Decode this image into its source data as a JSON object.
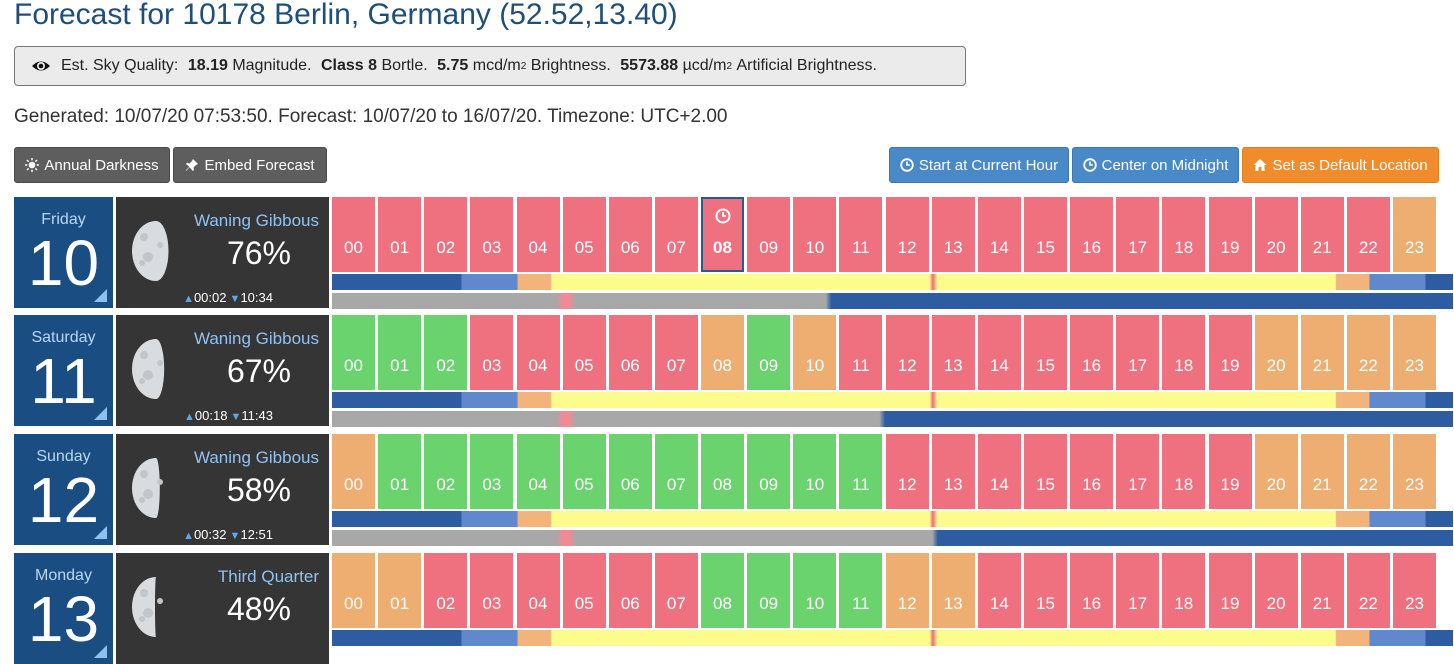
{
  "title": "Forecast for 10178 Berlin, Germany (52.52,13.40)",
  "sky_quality": {
    "icon": "eye-icon",
    "label": "Est. Sky Quality:",
    "magnitude_value": "18.19",
    "magnitude_label": "Magnitude.",
    "class_value": "Class 8",
    "class_label": "Bortle.",
    "brightness_value": "5.75",
    "brightness_unit": "mcd/m",
    "brightness_label": "Brightness.",
    "artificial_value": "5573.88",
    "artificial_unit": "µcd/m",
    "artificial_label": "Artificial Brightness.",
    "superscript": "2"
  },
  "generated_text": "Generated: 10/07/20 07:53:50. Forecast: 10/07/20 to 16/07/20. Timezone: UTC+2.00",
  "buttons": {
    "annual_darkness": "Annual Darkness",
    "embed_forecast": "Embed Forecast",
    "start_current_hour": "Start at Current Hour",
    "center_midnight": "Center on Midnight",
    "set_default": "Set as Default Location"
  },
  "colors": {
    "red": "#ef707f",
    "green": "#6ad36e",
    "orange": "#eeae72",
    "night": "#2d5da0",
    "twilight": "#5f88cd",
    "dusk": "#f2b47a",
    "day": "#fcfc8c",
    "moon": "#a8a8a8",
    "header_blue": "#1a4e82"
  },
  "days": [
    {
      "day_name": "Friday",
      "day_num": "10",
      "moon_phase": "Waning Gibbous",
      "illumination": "76%",
      "moonrise": "00:02",
      "moonset": "10:34",
      "current_hour": 8,
      "hours": [
        "red",
        "red",
        "red",
        "red",
        "red",
        "red",
        "red",
        "red",
        "red",
        "red",
        "red",
        "red",
        "red",
        "red",
        "red",
        "red",
        "red",
        "red",
        "red",
        "red",
        "red",
        "red",
        "red",
        "orange"
      ],
      "moon_up_until": 10.57
    },
    {
      "day_name": "Saturday",
      "day_num": "11",
      "moon_phase": "Waning Gibbous",
      "illumination": "67%",
      "moonrise": "00:18",
      "moonset": "11:43",
      "current_hour": null,
      "hours": [
        "green",
        "green",
        "green",
        "red",
        "red",
        "red",
        "red",
        "red",
        "orange",
        "green",
        "orange",
        "red",
        "red",
        "red",
        "red",
        "red",
        "red",
        "red",
        "red",
        "red",
        "orange",
        "orange",
        "orange",
        "orange"
      ],
      "moon_up_until": 11.72
    },
    {
      "day_name": "Sunday",
      "day_num": "12",
      "moon_phase": "Waning Gibbous",
      "illumination": "58%",
      "moonrise": "00:32",
      "moonset": "12:51",
      "current_hour": null,
      "hours": [
        "orange",
        "green",
        "green",
        "green",
        "green",
        "green",
        "green",
        "green",
        "green",
        "green",
        "green",
        "green",
        "red",
        "red",
        "red",
        "red",
        "red",
        "red",
        "red",
        "red",
        "orange",
        "orange",
        "orange",
        "orange"
      ],
      "moon_up_until": 12.85
    },
    {
      "day_name": "Monday",
      "day_num": "13",
      "moon_phase": "Third Quarter",
      "illumination": "48%",
      "moonrise": "",
      "moonset": "",
      "current_hour": null,
      "hours": [
        "orange",
        "orange",
        "red",
        "red",
        "red",
        "red",
        "red",
        "red",
        "green",
        "green",
        "green",
        "green",
        "orange",
        "orange",
        "red",
        "red",
        "red",
        "red",
        "red",
        "red",
        "red",
        "red",
        "red",
        "red"
      ],
      "moon_up_until": null
    }
  ]
}
